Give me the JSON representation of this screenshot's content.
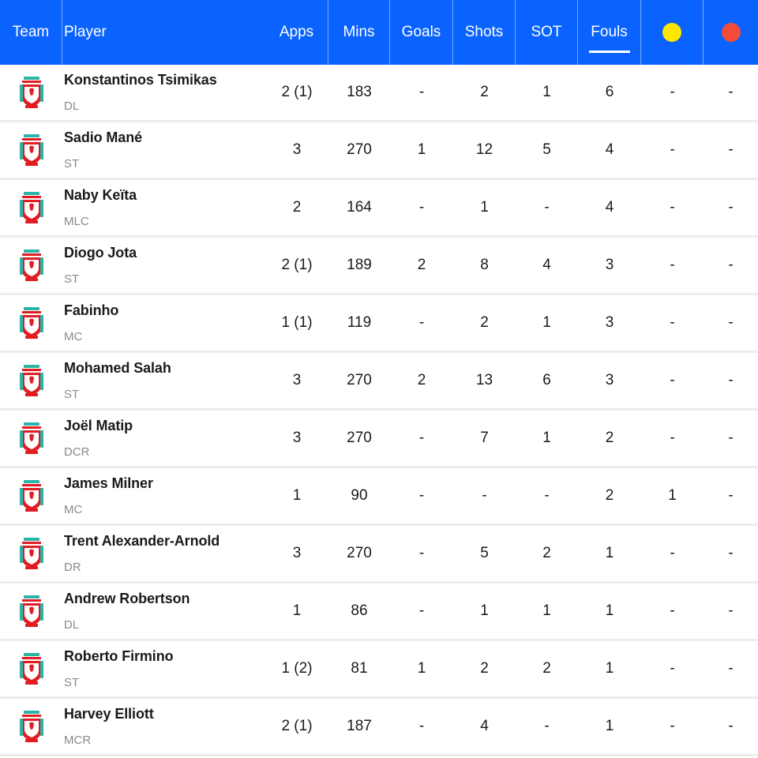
{
  "header": {
    "team": "Team",
    "player": "Player",
    "apps": "Apps",
    "mins": "Mins",
    "goals": "Goals",
    "shots": "Shots",
    "sot": "SOT",
    "fouls": "Fouls",
    "yellow_icon": "yellow-card-icon",
    "red_icon": "red-card-icon",
    "sorted_by": "Fouls"
  },
  "colors": {
    "header_bg": "#0a63ff",
    "yellow_card": "#ffe600",
    "red_card": "#f24b3a",
    "crest_red": "#e31b23",
    "crest_teal": "#2bb3a5"
  },
  "rows": [
    {
      "name": "Konstantinos Tsimikas",
      "pos": "DL",
      "apps": "2 (1)",
      "mins": "183",
      "goals": "-",
      "shots": "2",
      "sot": "1",
      "fouls": "6",
      "yellow": "-",
      "red": "-"
    },
    {
      "name": "Sadio Mané",
      "pos": "ST",
      "apps": "3",
      "mins": "270",
      "goals": "1",
      "shots": "12",
      "sot": "5",
      "fouls": "4",
      "yellow": "-",
      "red": "-"
    },
    {
      "name": "Naby Keïta",
      "pos": "MLC",
      "apps": "2",
      "mins": "164",
      "goals": "-",
      "shots": "1",
      "sot": "-",
      "fouls": "4",
      "yellow": "-",
      "red": "-"
    },
    {
      "name": "Diogo Jota",
      "pos": "ST",
      "apps": "2 (1)",
      "mins": "189",
      "goals": "2",
      "shots": "8",
      "sot": "4",
      "fouls": "3",
      "yellow": "-",
      "red": "-"
    },
    {
      "name": "Fabinho",
      "pos": "MC",
      "apps": "1 (1)",
      "mins": "119",
      "goals": "-",
      "shots": "2",
      "sot": "1",
      "fouls": "3",
      "yellow": "-",
      "red": "-"
    },
    {
      "name": "Mohamed Salah",
      "pos": "ST",
      "apps": "3",
      "mins": "270",
      "goals": "2",
      "shots": "13",
      "sot": "6",
      "fouls": "3",
      "yellow": "-",
      "red": "-"
    },
    {
      "name": "Joël Matip",
      "pos": "DCR",
      "apps": "3",
      "mins": "270",
      "goals": "-",
      "shots": "7",
      "sot": "1",
      "fouls": "2",
      "yellow": "-",
      "red": "-"
    },
    {
      "name": "James Milner",
      "pos": "MC",
      "apps": "1",
      "mins": "90",
      "goals": "-",
      "shots": "-",
      "sot": "-",
      "fouls": "2",
      "yellow": "1",
      "red": "-"
    },
    {
      "name": "Trent Alexander-Arnold",
      "pos": "DR",
      "apps": "3",
      "mins": "270",
      "goals": "-",
      "shots": "5",
      "sot": "2",
      "fouls": "1",
      "yellow": "-",
      "red": "-"
    },
    {
      "name": "Andrew Robertson",
      "pos": "DL",
      "apps": "1",
      "mins": "86",
      "goals": "-",
      "shots": "1",
      "sot": "1",
      "fouls": "1",
      "yellow": "-",
      "red": "-"
    },
    {
      "name": "Roberto Firmino",
      "pos": "ST",
      "apps": "1 (2)",
      "mins": "81",
      "goals": "1",
      "shots": "2",
      "sot": "2",
      "fouls": "1",
      "yellow": "-",
      "red": "-"
    },
    {
      "name": "Harvey Elliott",
      "pos": "MCR",
      "apps": "2 (1)",
      "mins": "187",
      "goals": "-",
      "shots": "4",
      "sot": "-",
      "fouls": "1",
      "yellow": "-",
      "red": "-"
    }
  ]
}
